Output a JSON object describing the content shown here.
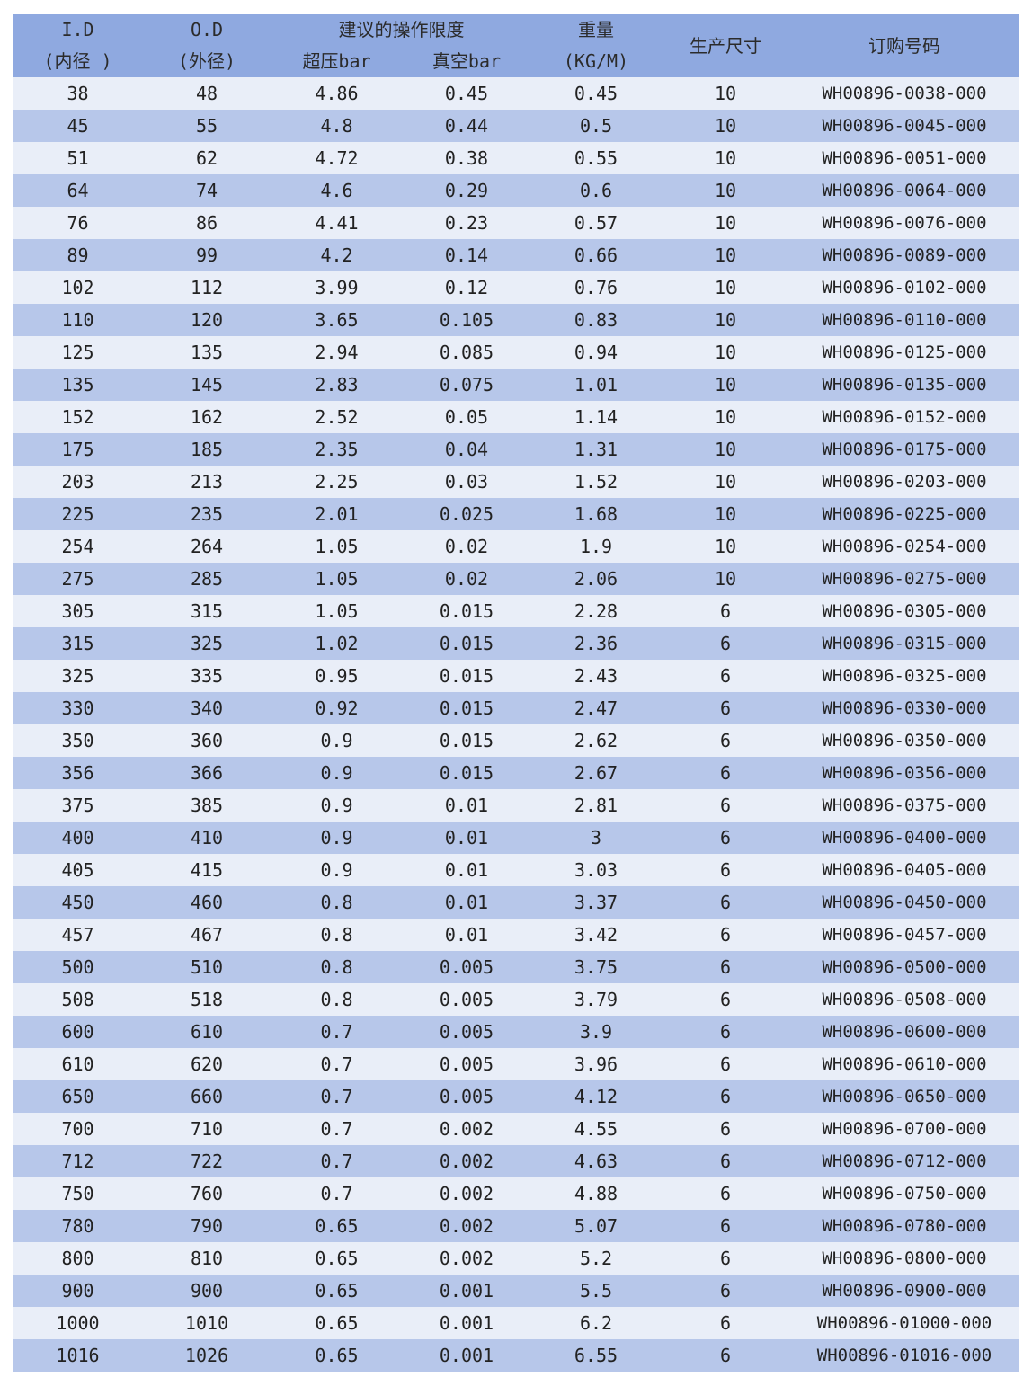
{
  "header": {
    "id_label": "I.D",
    "id_sub": "(内径 )",
    "od_label": "O.D",
    "od_sub": "(外径)",
    "limits_label": "建议的操作限度",
    "pressure_label": "超压bar",
    "vacuum_label": "真空bar",
    "weight_label": "重量",
    "weight_unit": "(KG/M)",
    "length_label": "生产尺寸",
    "code_label": "订购号码"
  },
  "rows": [
    {
      "id": "38",
      "od": "48",
      "pressure": "4.86",
      "vacuum": "0.45",
      "weight": "0.45",
      "length": "10",
      "code": "WH00896-0038-000"
    },
    {
      "id": "45",
      "od": "55",
      "pressure": "4.8",
      "vacuum": "0.44",
      "weight": "0.5",
      "length": "10",
      "code": "WH00896-0045-000"
    },
    {
      "id": "51",
      "od": "62",
      "pressure": "4.72",
      "vacuum": "0.38",
      "weight": "0.55",
      "length": "10",
      "code": "WH00896-0051-000"
    },
    {
      "id": "64",
      "od": "74",
      "pressure": "4.6",
      "vacuum": "0.29",
      "weight": "0.6",
      "length": "10",
      "code": "WH00896-0064-000"
    },
    {
      "id": "76",
      "od": "86",
      "pressure": "4.41",
      "vacuum": "0.23",
      "weight": "0.57",
      "length": "10",
      "code": "WH00896-0076-000"
    },
    {
      "id": "89",
      "od": "99",
      "pressure": "4.2",
      "vacuum": "0.14",
      "weight": "0.66",
      "length": "10",
      "code": "WH00896-0089-000"
    },
    {
      "id": "102",
      "od": "112",
      "pressure": "3.99",
      "vacuum": "0.12",
      "weight": "0.76",
      "length": "10",
      "code": "WH00896-0102-000"
    },
    {
      "id": "110",
      "od": "120",
      "pressure": "3.65",
      "vacuum": "0.105",
      "weight": "0.83",
      "length": "10",
      "code": "WH00896-0110-000"
    },
    {
      "id": "125",
      "od": "135",
      "pressure": "2.94",
      "vacuum": "0.085",
      "weight": "0.94",
      "length": "10",
      "code": "WH00896-0125-000"
    },
    {
      "id": "135",
      "od": "145",
      "pressure": "2.83",
      "vacuum": "0.075",
      "weight": "1.01",
      "length": "10",
      "code": "WH00896-0135-000"
    },
    {
      "id": "152",
      "od": "162",
      "pressure": "2.52",
      "vacuum": "0.05",
      "weight": "1.14",
      "length": "10",
      "code": "WH00896-0152-000"
    },
    {
      "id": "175",
      "od": "185",
      "pressure": "2.35",
      "vacuum": "0.04",
      "weight": "1.31",
      "length": "10",
      "code": "WH00896-0175-000"
    },
    {
      "id": "203",
      "od": "213",
      "pressure": "2.25",
      "vacuum": "0.03",
      "weight": "1.52",
      "length": "10",
      "code": "WH00896-0203-000"
    },
    {
      "id": "225",
      "od": "235",
      "pressure": "2.01",
      "vacuum": "0.025",
      "weight": "1.68",
      "length": "10",
      "code": "WH00896-0225-000"
    },
    {
      "id": "254",
      "od": "264",
      "pressure": "1.05",
      "vacuum": "0.02",
      "weight": "1.9",
      "length": "10",
      "code": "WH00896-0254-000"
    },
    {
      "id": "275",
      "od": "285",
      "pressure": "1.05",
      "vacuum": "0.02",
      "weight": "2.06",
      "length": "10",
      "code": "WH00896-0275-000"
    },
    {
      "id": "305",
      "od": "315",
      "pressure": "1.05",
      "vacuum": "0.015",
      "weight": "2.28",
      "length": "6",
      "code": "WH00896-0305-000"
    },
    {
      "id": "315",
      "od": "325",
      "pressure": "1.02",
      "vacuum": "0.015",
      "weight": "2.36",
      "length": "6",
      "code": "WH00896-0315-000"
    },
    {
      "id": "325",
      "od": "335",
      "pressure": "0.95",
      "vacuum": "0.015",
      "weight": "2.43",
      "length": "6",
      "code": "WH00896-0325-000"
    },
    {
      "id": "330",
      "od": "340",
      "pressure": "0.92",
      "vacuum": "0.015",
      "weight": "2.47",
      "length": "6",
      "code": "WH00896-0330-000"
    },
    {
      "id": "350",
      "od": "360",
      "pressure": "0.9",
      "vacuum": "0.015",
      "weight": "2.62",
      "length": "6",
      "code": "WH00896-0350-000"
    },
    {
      "id": "356",
      "od": "366",
      "pressure": "0.9",
      "vacuum": "0.015",
      "weight": "2.67",
      "length": "6",
      "code": "WH00896-0356-000"
    },
    {
      "id": "375",
      "od": "385",
      "pressure": "0.9",
      "vacuum": "0.01",
      "weight": "2.81",
      "length": "6",
      "code": "WH00896-0375-000"
    },
    {
      "id": "400",
      "od": "410",
      "pressure": "0.9",
      "vacuum": "0.01",
      "weight": "3",
      "length": "6",
      "code": "WH00896-0400-000"
    },
    {
      "id": "405",
      "od": "415",
      "pressure": "0.9",
      "vacuum": "0.01",
      "weight": "3.03",
      "length": "6",
      "code": "WH00896-0405-000"
    },
    {
      "id": "450",
      "od": "460",
      "pressure": "0.8",
      "vacuum": "0.01",
      "weight": "3.37",
      "length": "6",
      "code": "WH00896-0450-000"
    },
    {
      "id": "457",
      "od": "467",
      "pressure": "0.8",
      "vacuum": "0.01",
      "weight": "3.42",
      "length": "6",
      "code": "WH00896-0457-000"
    },
    {
      "id": "500",
      "od": "510",
      "pressure": "0.8",
      "vacuum": "0.005",
      "weight": "3.75",
      "length": "6",
      "code": "WH00896-0500-000"
    },
    {
      "id": "508",
      "od": "518",
      "pressure": "0.8",
      "vacuum": "0.005",
      "weight": "3.79",
      "length": "6",
      "code": "WH00896-0508-000"
    },
    {
      "id": "600",
      "od": "610",
      "pressure": "0.7",
      "vacuum": "0.005",
      "weight": "3.9",
      "length": "6",
      "code": "WH00896-0600-000"
    },
    {
      "id": "610",
      "od": "620",
      "pressure": "0.7",
      "vacuum": "0.005",
      "weight": "3.96",
      "length": "6",
      "code": "WH00896-0610-000"
    },
    {
      "id": "650",
      "od": "660",
      "pressure": "0.7",
      "vacuum": "0.005",
      "weight": "4.12",
      "length": "6",
      "code": "WH00896-0650-000"
    },
    {
      "id": "700",
      "od": "710",
      "pressure": "0.7",
      "vacuum": "0.002",
      "weight": "4.55",
      "length": "6",
      "code": "WH00896-0700-000"
    },
    {
      "id": "712",
      "od": "722",
      "pressure": "0.7",
      "vacuum": "0.002",
      "weight": "4.63",
      "length": "6",
      "code": "WH00896-0712-000"
    },
    {
      "id": "750",
      "od": "760",
      "pressure": "0.7",
      "vacuum": "0.002",
      "weight": "4.88",
      "length": "6",
      "code": "WH00896-0750-000"
    },
    {
      "id": "780",
      "od": "790",
      "pressure": "0.65",
      "vacuum": "0.002",
      "weight": "5.07",
      "length": "6",
      "code": "WH00896-0780-000"
    },
    {
      "id": "800",
      "od": "810",
      "pressure": "0.65",
      "vacuum": "0.002",
      "weight": "5.2",
      "length": "6",
      "code": "WH00896-0800-000"
    },
    {
      "id": "900",
      "od": "900",
      "pressure": "0.65",
      "vacuum": "0.001",
      "weight": "5.5",
      "length": "6",
      "code": "WH00896-0900-000"
    },
    {
      "id": "1000",
      "od": "1010",
      "pressure": "0.65",
      "vacuum": "0.001",
      "weight": "6.2",
      "length": "6",
      "code": "WH00896-01000-000"
    },
    {
      "id": "1016",
      "od": "1026",
      "pressure": "0.65",
      "vacuum": "0.001",
      "weight": "6.55",
      "length": "6",
      "code": "WH00896-01016-000"
    }
  ]
}
